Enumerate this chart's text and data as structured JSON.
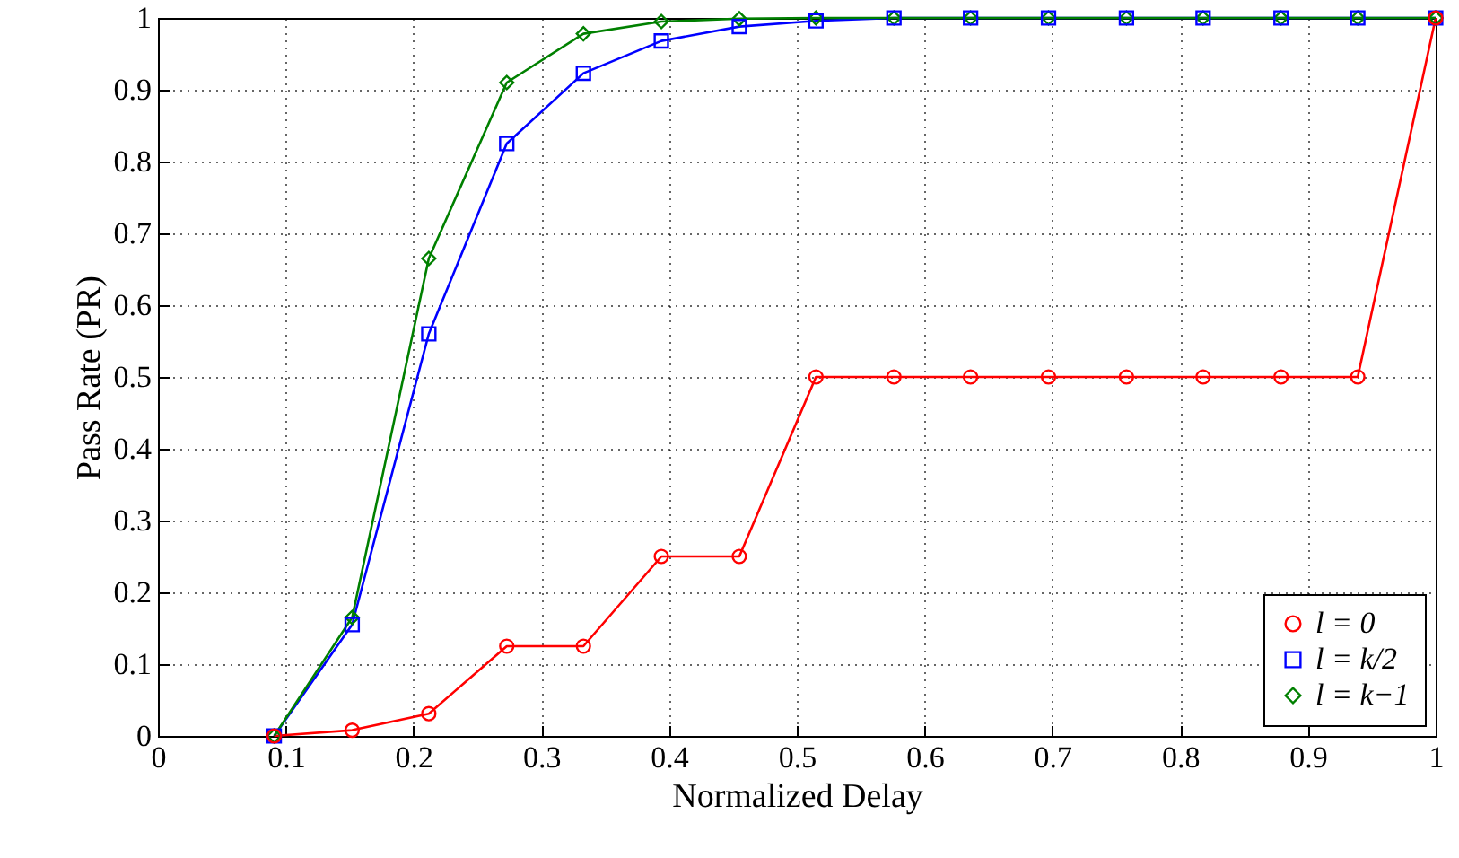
{
  "chart_data": {
    "type": "line",
    "xlabel": "Normalized Delay",
    "ylabel": "Pass Rate (PR)",
    "x": [
      0.091,
      0.152,
      0.212,
      0.273,
      0.333,
      0.394,
      0.455,
      0.515,
      0.576,
      0.636,
      0.697,
      0.758,
      0.818,
      0.879,
      0.939,
      1
    ],
    "series": [
      {
        "name": "l = 0",
        "color": "#ff0000",
        "marker": "circle",
        "values": [
          0,
          0.008,
          0.031,
          0.125,
          0.125,
          0.25,
          0.25,
          0.5,
          0.5,
          0.5,
          0.5,
          0.5,
          0.5,
          0.5,
          0.5,
          1
        ]
      },
      {
        "name": "l = k/2",
        "color": "#0000ff",
        "marker": "square",
        "values": [
          0,
          0.155,
          0.56,
          0.825,
          0.923,
          0.968,
          0.988,
          0.996,
          1,
          1,
          1,
          1,
          1,
          1,
          1,
          1
        ]
      },
      {
        "name": "l = k−1",
        "color": "#008000",
        "marker": "diamond",
        "values": [
          0,
          0.165,
          0.665,
          0.91,
          0.978,
          0.995,
          0.999,
          1,
          1,
          1,
          1,
          1,
          1,
          1,
          1,
          1
        ]
      }
    ],
    "xlim": [
      0,
      1
    ],
    "xticks": [
      0,
      0.1,
      0.2,
      0.3,
      0.4,
      0.5,
      0.6,
      0.7,
      0.8,
      0.9,
      1
    ],
    "ylim": [
      0,
      1
    ],
    "yticks": [
      0,
      0.1,
      0.2,
      0.3,
      0.4,
      0.5,
      0.6,
      0.7,
      0.8,
      0.9,
      1
    ],
    "grid": true,
    "legend": "bottom right",
    "line_style": "solid"
  }
}
